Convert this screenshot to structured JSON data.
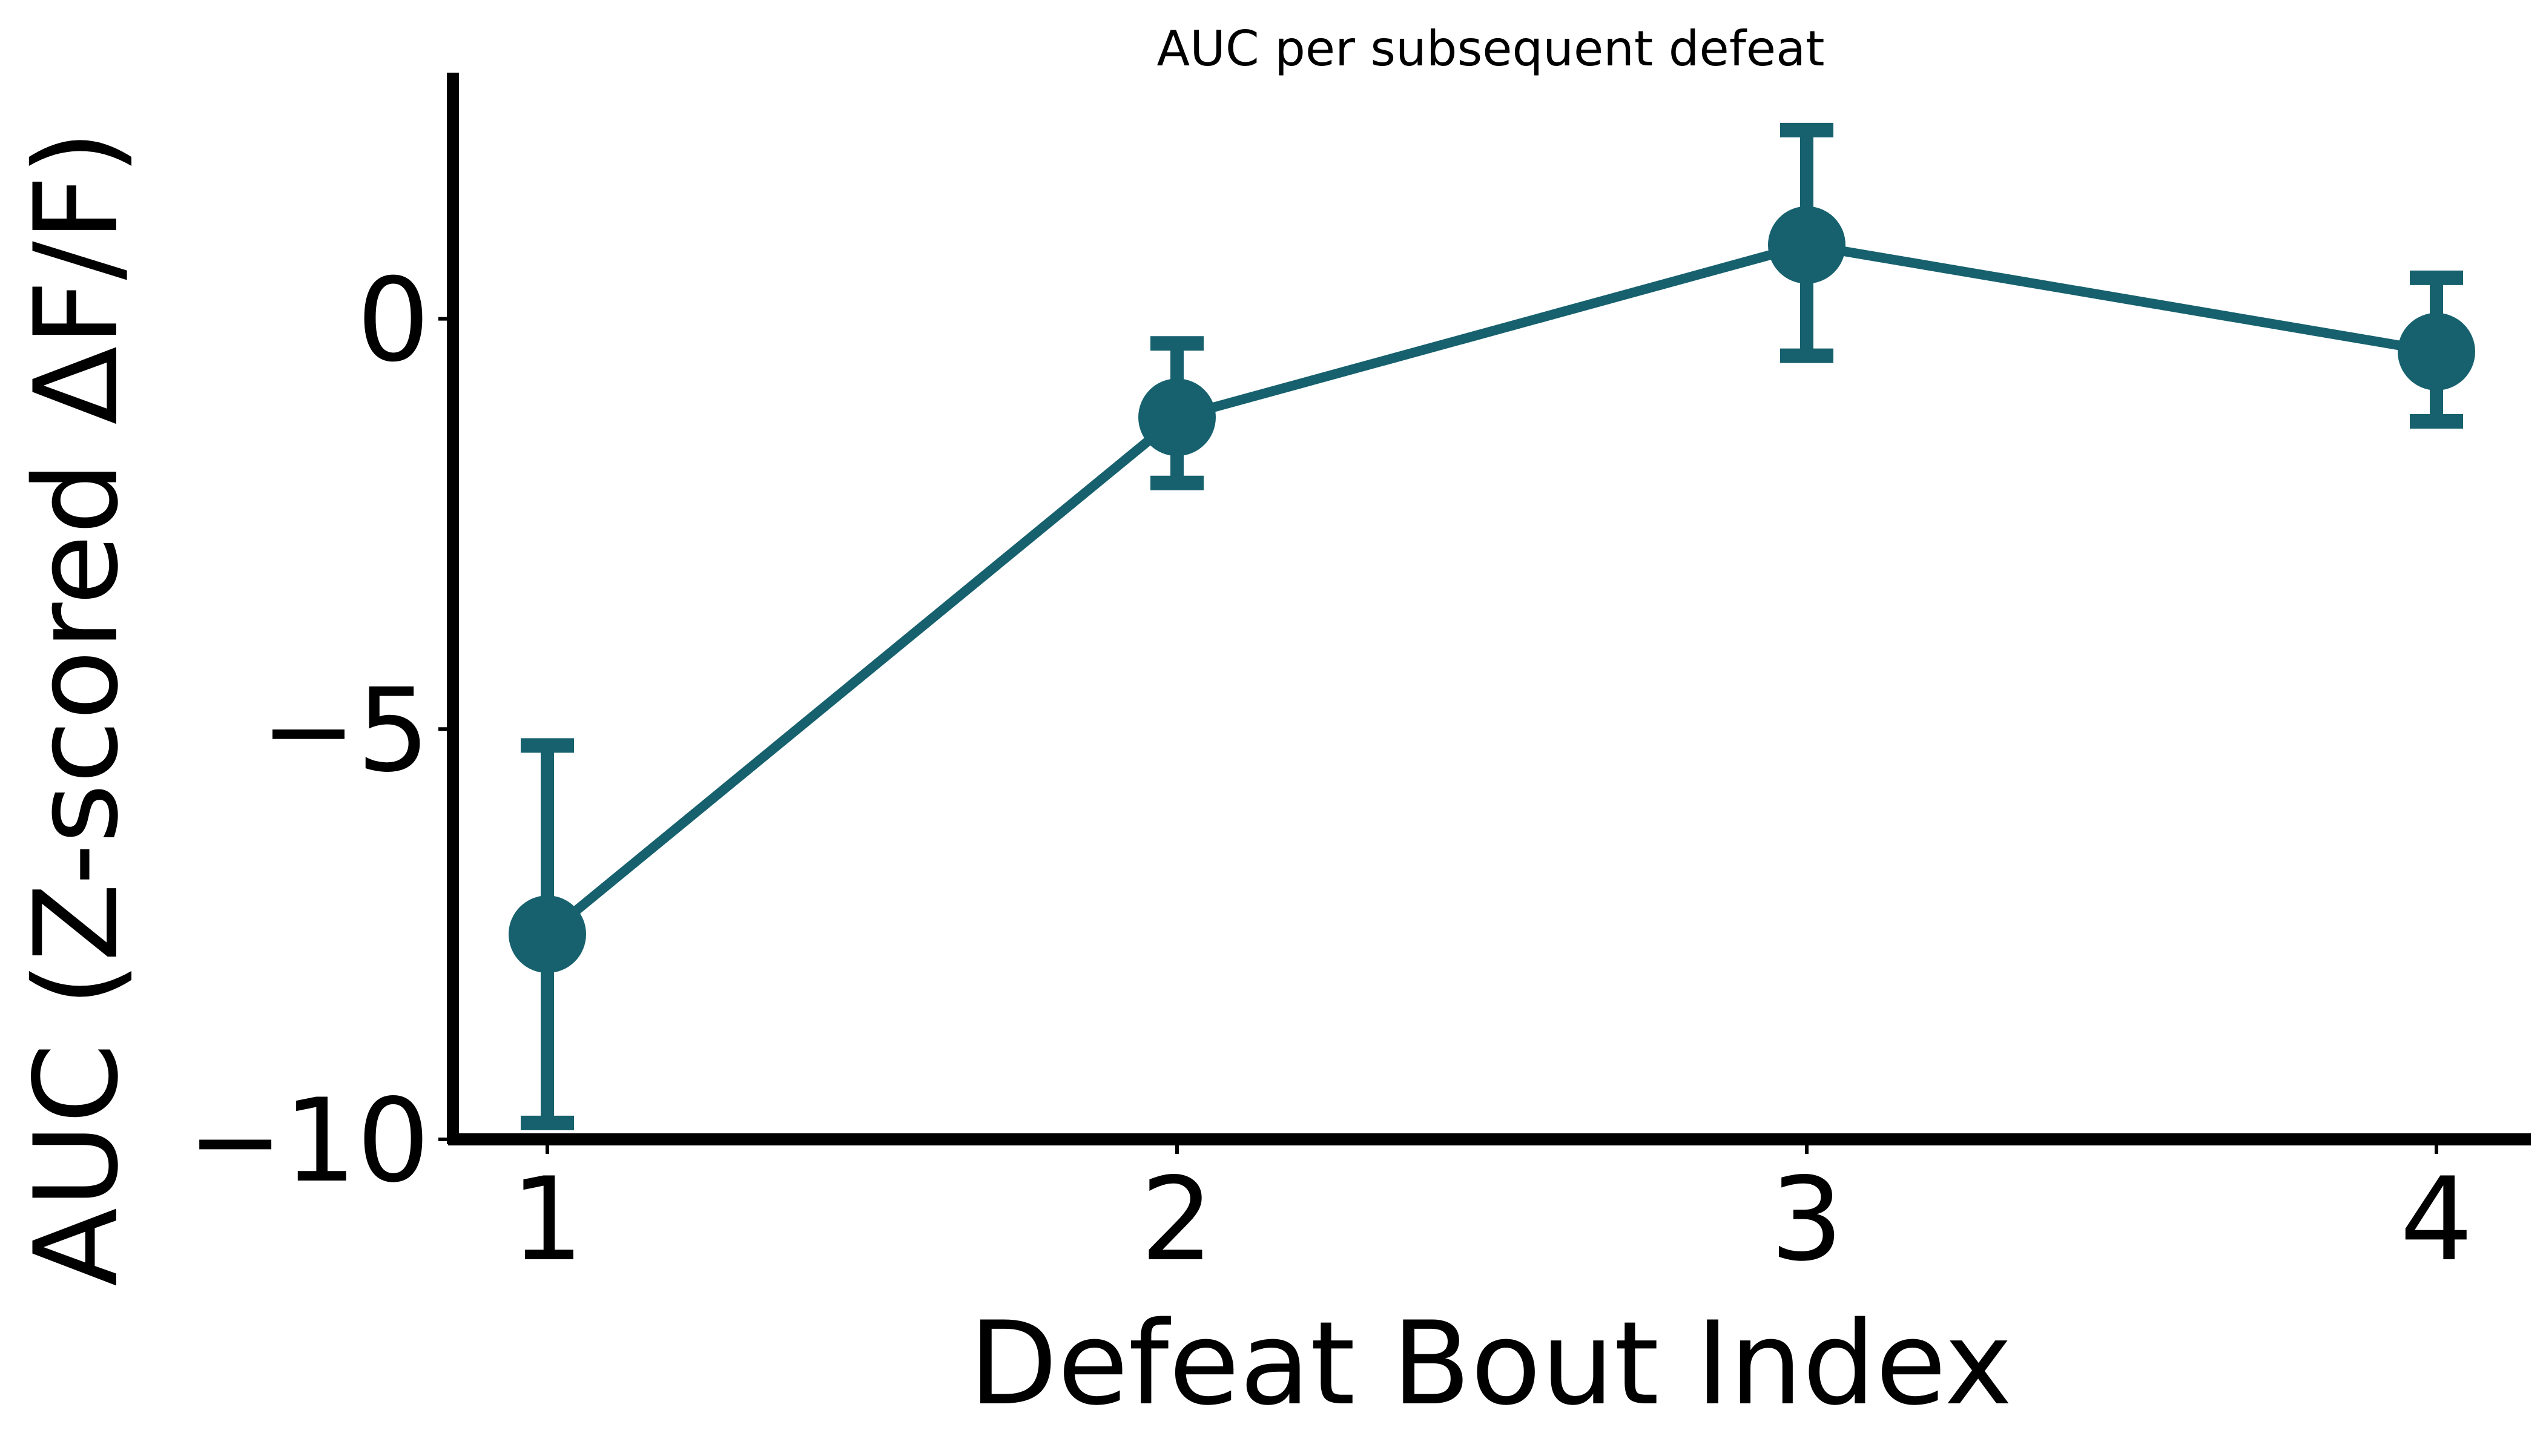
{
  "chart_data": {
    "type": "line",
    "title": "AUC per subsequent defeat",
    "xlabel": "Defeat Bout Index",
    "ylabel": "AUC (Z-scored ΔF/F)",
    "x": [
      1,
      2,
      3,
      4
    ],
    "x_tick_labels": [
      "1",
      "2",
      "3",
      "4"
    ],
    "y_ticks": [
      0,
      -5,
      -10
    ],
    "y_tick_labels": [
      "0",
      "−5",
      "−10"
    ],
    "xlim": [
      0.85,
      4.15
    ],
    "ylim": [
      -10,
      3
    ],
    "series": [
      {
        "values": [
          -7.5,
          -1.2,
          0.9,
          -0.4
        ],
        "error_lower": [
          -9.8,
          -2.0,
          -0.45,
          -1.25
        ],
        "error_upper": [
          -5.2,
          -0.3,
          2.3,
          0.5
        ],
        "color": "#17616e"
      }
    ],
    "grid": false,
    "legend": "none"
  }
}
